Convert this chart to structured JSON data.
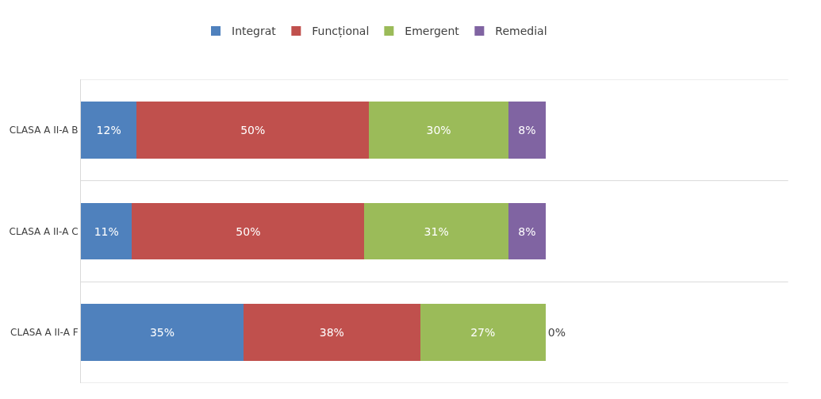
{
  "chart_data": {
    "type": "bar",
    "orientation": "horizontal",
    "stacked": true,
    "legend": "top",
    "grid": "y",
    "tick_labels": "y",
    "categories": [
      "CLASA A II-A B",
      "CLASA A II-A C",
      "CLASA A II-A F"
    ],
    "series": [
      {
        "name": "Integrat",
        "color": "#4f81bd",
        "values": [
          12,
          11,
          35
        ],
        "value_labels": [
          "12%",
          "11%",
          "35%"
        ]
      },
      {
        "name": "Funcțional",
        "color": "#c0504d",
        "values": [
          50,
          50,
          38
        ],
        "value_labels": [
          "50%",
          "50%",
          "38%"
        ]
      },
      {
        "name": "Emergent",
        "color": "#9bbb59",
        "values": [
          30,
          31,
          27
        ],
        "value_labels": [
          "30%",
          "31%",
          "27%"
        ]
      },
      {
        "name": "Remedial",
        "color": "#8064a2",
        "values": [
          8,
          8,
          0
        ],
        "value_labels": [
          "8%",
          "8%",
          "0%"
        ]
      }
    ]
  }
}
